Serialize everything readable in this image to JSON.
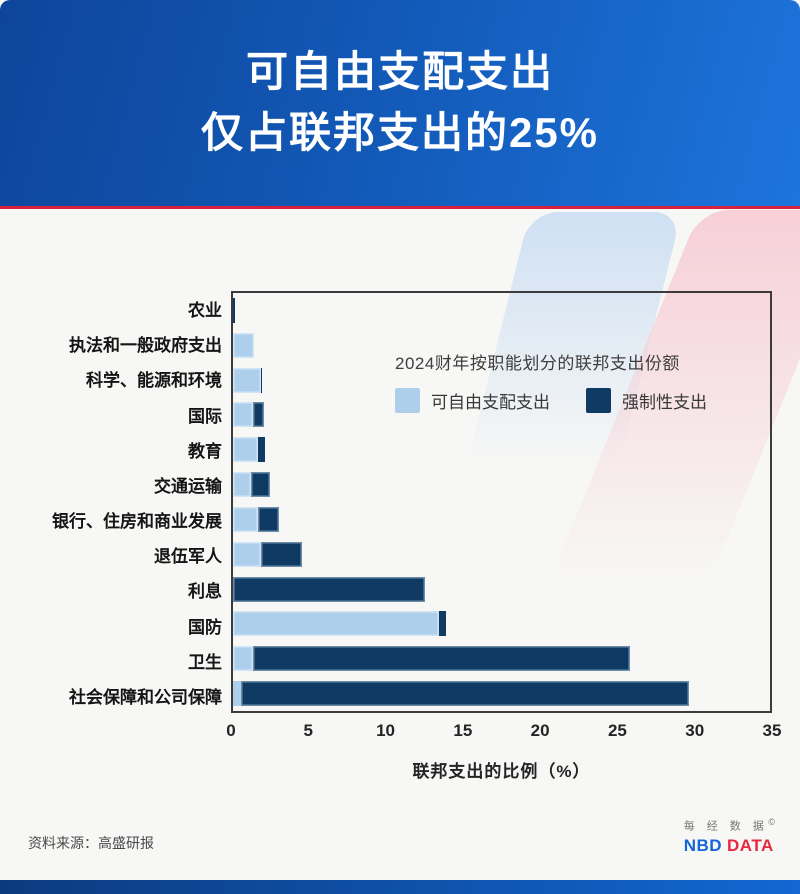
{
  "header": {
    "title_line1": "可自由支配支出",
    "title_line2": "仅占联邦支出的25%"
  },
  "chart_data": {
    "type": "bar",
    "orientation": "horizontal",
    "stacked": true,
    "title": "2024财年按职能划分的联邦支出份额",
    "xlabel": "联邦支出的比例（%）",
    "xlim": [
      0,
      35
    ],
    "x_ticks": [
      "0",
      "5",
      "10",
      "15",
      "20",
      "25",
      "30",
      "35"
    ],
    "grid": false,
    "legend_position": "inside-upper-right",
    "colors": {
      "discretionary": "#AECFEB",
      "mandatory": "#0F3A63"
    },
    "categories": [
      "农业",
      "执法和一般政府支出",
      "科学、能源和环境",
      "国际",
      "教育",
      "交通运输",
      "银行、住房和商业发展",
      "退伍军人",
      "利息",
      "国防",
      "卫生",
      "社会保障和公司保障"
    ],
    "series": [
      {
        "name": "可自由支配支出",
        "color_key": "discretionary",
        "values": [
          0,
          1.4,
          1.8,
          1.3,
          1.6,
          1.2,
          1.6,
          1.8,
          0,
          13.4,
          1.3,
          0.5
        ]
      },
      {
        "name": "强制性支出",
        "color_key": "mandatory",
        "values": [
          0.4,
          0,
          0.1,
          0.7,
          0.5,
          1.2,
          1.4,
          2.7,
          12.5,
          0.5,
          24.6,
          29.2
        ]
      }
    ]
  },
  "footer": {
    "source": "资料来源：高盛研报",
    "brand_cn": "每 经 数 据",
    "brand_copyright": "©",
    "brand_nbd": "NBD",
    "brand_data": "DATA"
  },
  "colors": {
    "accent_red": "#D6203E",
    "header_start": "#0E459A",
    "header_end": "#1D74DC",
    "bottom_bar_start": "#0C3A7E",
    "bottom_bar_end": "#1267D2"
  }
}
